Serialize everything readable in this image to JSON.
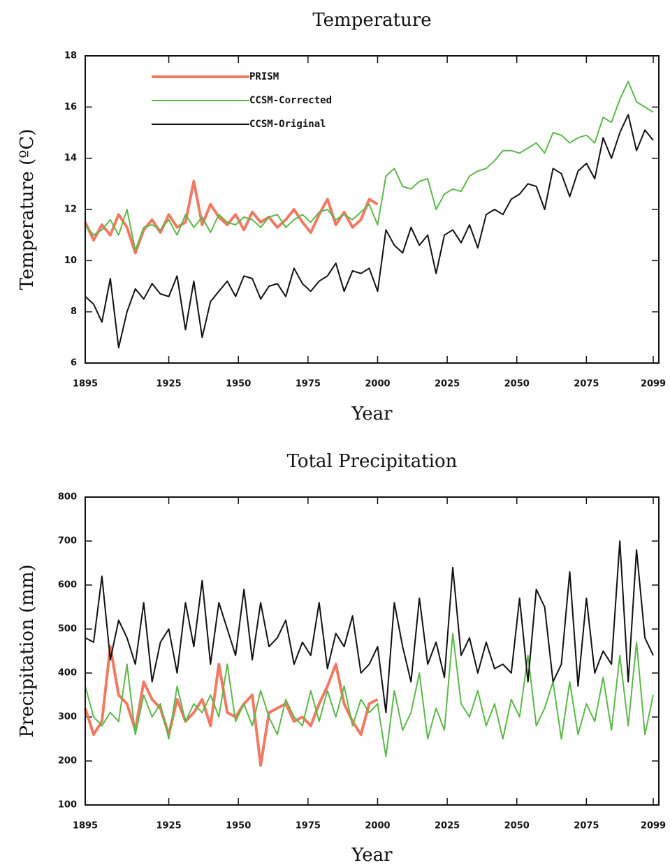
{
  "chart_data": [
    {
      "type": "line",
      "title": "Temperature",
      "xlabel": "Year",
      "ylabel": "Temperature (ºC)",
      "x": [
        1895,
        1898,
        1901,
        1904,
        1907,
        1910,
        1913,
        1916,
        1919,
        1922,
        1925,
        1928,
        1931,
        1934,
        1937,
        1940,
        1943,
        1946,
        1949,
        1952,
        1955,
        1958,
        1961,
        1964,
        1967,
        1970,
        1973,
        1976,
        1979,
        1982,
        1985,
        1988,
        1991,
        1994,
        1997,
        2000,
        2003,
        2006,
        2009,
        2012,
        2015,
        2018,
        2021,
        2024,
        2027,
        2030,
        2033,
        2036,
        2039,
        2042,
        2045,
        2048,
        2051,
        2054,
        2057,
        2060,
        2063,
        2066,
        2069,
        2072,
        2075,
        2078,
        2081,
        2084,
        2087,
        2090,
        2093,
        2096,
        2099
      ],
      "xlim": [
        1895,
        2101
      ],
      "xticks": [
        1895,
        1925,
        1950,
        1975,
        2000,
        2025,
        2050,
        2075,
        2099
      ],
      "ylim": [
        6,
        18
      ],
      "yticks": [
        6,
        8,
        10,
        12,
        14,
        16,
        18
      ],
      "legend": "upper left",
      "series": [
        {
          "name": "PRISM",
          "color": "#f07a62",
          "width": 4,
          "values": [
            11.5,
            10.8,
            11.4,
            11.0,
            11.8,
            11.3,
            10.3,
            11.2,
            11.6,
            11.1,
            11.8,
            11.3,
            11.5,
            13.1,
            11.4,
            12.2,
            11.7,
            11.4,
            11.8,
            11.2,
            11.9,
            11.5,
            11.7,
            11.3,
            11.6,
            12.0,
            11.5,
            11.1,
            11.8,
            12.4,
            11.4,
            11.9,
            11.3,
            11.6,
            12.4,
            12.2,
            null,
            null,
            null,
            null,
            null,
            null,
            null,
            null,
            null,
            null,
            null,
            null,
            null,
            null,
            null,
            null,
            null,
            null,
            null,
            null,
            null,
            null,
            null,
            null,
            null,
            null,
            null,
            null,
            null,
            null,
            null,
            null,
            null
          ]
        },
        {
          "name": "CCSM-Corrected",
          "color": "#5cb84a",
          "width": 2,
          "values": [
            11.4,
            11.0,
            11.2,
            11.6,
            11.0,
            12.0,
            10.4,
            11.3,
            11.4,
            11.2,
            11.6,
            11.0,
            11.8,
            11.3,
            11.7,
            11.1,
            11.8,
            11.5,
            11.4,
            11.7,
            11.6,
            11.3,
            11.7,
            11.8,
            11.3,
            11.6,
            11.8,
            11.5,
            11.9,
            12.0,
            11.6,
            11.8,
            11.6,
            11.9,
            12.2,
            11.4,
            13.3,
            13.6,
            12.9,
            12.8,
            13.1,
            13.2,
            12.0,
            12.6,
            12.8,
            12.7,
            13.3,
            13.5,
            13.6,
            13.9,
            14.3,
            14.3,
            14.2,
            14.4,
            14.6,
            14.2,
            15.0,
            14.9,
            14.6,
            14.8,
            14.9,
            14.6,
            15.6,
            15.4,
            16.3,
            17.0,
            16.2,
            16.0,
            15.8
          ]
        },
        {
          "name": "CCSM-Original",
          "color": "#111111",
          "width": 2,
          "values": [
            8.6,
            8.3,
            7.6,
            9.3,
            6.6,
            8.0,
            8.9,
            8.5,
            9.1,
            8.7,
            8.6,
            9.4,
            7.3,
            9.2,
            7.0,
            8.4,
            8.8,
            9.2,
            8.6,
            9.4,
            9.3,
            8.5,
            9.0,
            9.1,
            8.6,
            9.7,
            9.1,
            8.8,
            9.2,
            9.4,
            9.9,
            8.8,
            9.6,
            9.5,
            9.7,
            8.8,
            11.2,
            10.6,
            10.3,
            11.3,
            10.6,
            11.0,
            9.5,
            11.0,
            11.2,
            10.7,
            11.4,
            10.5,
            11.8,
            12.0,
            11.8,
            12.4,
            12.6,
            13.0,
            12.9,
            12.0,
            13.6,
            13.4,
            12.5,
            13.5,
            13.8,
            13.2,
            14.8,
            14.0,
            15.0,
            15.7,
            14.3,
            15.1,
            14.7
          ]
        }
      ]
    },
    {
      "type": "line",
      "title": "Total Precipitation",
      "xlabel": "Year",
      "ylabel": "Precipitation (mm)",
      "x": [
        1895,
        1898,
        1901,
        1904,
        1907,
        1910,
        1913,
        1916,
        1919,
        1922,
        1925,
        1928,
        1931,
        1934,
        1937,
        1940,
        1943,
        1946,
        1949,
        1952,
        1955,
        1958,
        1961,
        1964,
        1967,
        1970,
        1973,
        1976,
        1979,
        1982,
        1985,
        1988,
        1991,
        1994,
        1997,
        2000,
        2003,
        2006,
        2009,
        2012,
        2015,
        2018,
        2021,
        2024,
        2027,
        2030,
        2033,
        2036,
        2039,
        2042,
        2045,
        2048,
        2051,
        2054,
        2057,
        2060,
        2063,
        2066,
        2069,
        2072,
        2075,
        2078,
        2081,
        2084,
        2087,
        2090,
        2093,
        2096,
        2099
      ],
      "xlim": [
        1895,
        2101
      ],
      "xticks": [
        1895,
        1925,
        1950,
        1975,
        2000,
        2025,
        2050,
        2075,
        2099
      ],
      "ylim": [
        100,
        800
      ],
      "yticks": [
        100,
        200,
        300,
        400,
        500,
        600,
        700,
        800
      ],
      "legend": "none",
      "series": [
        {
          "name": "PRISM",
          "color": "#f07a62",
          "width": 4,
          "values": [
            320,
            260,
            290,
            460,
            350,
            330,
            270,
            380,
            340,
            320,
            260,
            340,
            290,
            310,
            340,
            280,
            420,
            310,
            300,
            330,
            350,
            190,
            310,
            320,
            330,
            290,
            300,
            280,
            330,
            370,
            420,
            330,
            290,
            260,
            330,
            340,
            null,
            null,
            null,
            null,
            null,
            null,
            null,
            null,
            null,
            null,
            null,
            null,
            null,
            null,
            null,
            null,
            null,
            null,
            null,
            null,
            null,
            null,
            null,
            null,
            null,
            null,
            null,
            null,
            null,
            null,
            null,
            null,
            null
          ]
        },
        {
          "name": "CCSM-Corrected",
          "color": "#5cb84a",
          "width": 2,
          "values": [
            370,
            300,
            280,
            310,
            290,
            420,
            260,
            350,
            300,
            330,
            250,
            370,
            290,
            330,
            310,
            350,
            300,
            420,
            290,
            330,
            280,
            360,
            300,
            260,
            340,
            300,
            280,
            360,
            290,
            360,
            300,
            370,
            280,
            340,
            310,
            330,
            210,
            360,
            270,
            310,
            400,
            250,
            320,
            270,
            490,
            330,
            300,
            360,
            280,
            330,
            250,
            340,
            300,
            440,
            280,
            320,
            380,
            250,
            380,
            260,
            330,
            290,
            390,
            270,
            440,
            280,
            470,
            260,
            350
          ]
        },
        {
          "name": "CCSM-Original",
          "color": "#111111",
          "width": 2,
          "values": [
            480,
            470,
            620,
            430,
            520,
            480,
            420,
            560,
            380,
            470,
            500,
            400,
            560,
            460,
            610,
            420,
            560,
            500,
            440,
            590,
            430,
            560,
            460,
            480,
            520,
            420,
            470,
            440,
            560,
            410,
            490,
            460,
            530,
            400,
            420,
            460,
            310,
            560,
            460,
            380,
            570,
            420,
            470,
            390,
            640,
            440,
            480,
            400,
            470,
            410,
            420,
            400,
            570,
            380,
            590,
            550,
            380,
            420,
            630,
            370,
            570,
            400,
            450,
            420,
            700,
            380,
            680,
            480,
            440
          ]
        }
      ]
    }
  ]
}
